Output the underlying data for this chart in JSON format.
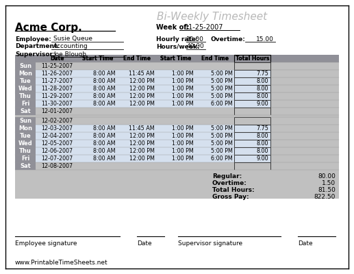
{
  "title": "Bi-Weekly Timesheet",
  "company": "Acme Corp.",
  "week_of_label": "Week of:",
  "week_of_value": "11-25-2007",
  "employee_label": "Employee:",
  "employee_value": "Susie Queue",
  "department_label": "Department:",
  "department_value": "Accounting",
  "supervisor_label": "Supervisor:",
  "supervisor_value": "Joe Blough",
  "hourly_rate_label": "Hourly rate:",
  "hourly_rate_value": "10.00",
  "overtime_label": "Overtime:",
  "overtime_value": "15.00",
  "hours_week_label": "Hours/week:",
  "hours_week_value": "40.00",
  "col_headers": [
    "Date",
    "Start Time",
    "End Time",
    "Start Time",
    "End Time",
    "Total Hours"
  ],
  "week1_rows": [
    {
      "day": "Sun",
      "date": "11-25-2007",
      "s1": "",
      "e1": "",
      "s2": "",
      "e2": "",
      "hours": ""
    },
    {
      "day": "Mon",
      "date": "11-26-2007",
      "s1": "8:00 AM",
      "e1": "11:45 AM",
      "s2": "1:00 PM",
      "e2": "5:00 PM",
      "hours": "7.75"
    },
    {
      "day": "Tue",
      "date": "11-27-2007",
      "s1": "8:00 AM",
      "e1": "12:00 PM",
      "s2": "1:00 PM",
      "e2": "5:00 PM",
      "hours": "8.00"
    },
    {
      "day": "Wed",
      "date": "11-28-2007",
      "s1": "8:00 AM",
      "e1": "12:00 PM",
      "s2": "1:00 PM",
      "e2": "5:00 PM",
      "hours": "8.00"
    },
    {
      "day": "Thu",
      "date": "11-29-2007",
      "s1": "8:00 AM",
      "e1": "12:00 PM",
      "s2": "1:00 PM",
      "e2": "5:00 PM",
      "hours": "8.00"
    },
    {
      "day": "Fri",
      "date": "11-30-2007",
      "s1": "8:00 AM",
      "e1": "12:00 PM",
      "s2": "1:00 PM",
      "e2": "6:00 PM",
      "hours": "9.00"
    },
    {
      "day": "Sat",
      "date": "12-01-2007",
      "s1": "",
      "e1": "",
      "s2": "",
      "e2": "",
      "hours": ""
    }
  ],
  "week2_rows": [
    {
      "day": "Sun",
      "date": "12-02-2007",
      "s1": "",
      "e1": "",
      "s2": "",
      "e2": "",
      "hours": ""
    },
    {
      "day": "Mon",
      "date": "12-03-2007",
      "s1": "8:00 AM",
      "e1": "11:45 AM",
      "s2": "1:00 PM",
      "e2": "5:00 PM",
      "hours": "7.75"
    },
    {
      "day": "Tue",
      "date": "12-04-2007",
      "s1": "8:00 AM",
      "e1": "12:00 PM",
      "s2": "1:00 PM",
      "e2": "5:00 PM",
      "hours": "8.00"
    },
    {
      "day": "Wed",
      "date": "12-05-2007",
      "s1": "8:00 AM",
      "e1": "12:00 PM",
      "s2": "1:00 PM",
      "e2": "5:00 PM",
      "hours": "8.00"
    },
    {
      "day": "Thu",
      "date": "12-06-2007",
      "s1": "8:00 AM",
      "e1": "12:00 PM",
      "s2": "1:00 PM",
      "e2": "5:00 PM",
      "hours": "8.00"
    },
    {
      "day": "Fri",
      "date": "12-07-2007",
      "s1": "8:00 AM",
      "e1": "12:00 PM",
      "s2": "1:00 PM",
      "e2": "6:00 PM",
      "hours": "9.00"
    },
    {
      "day": "Sat",
      "date": "12-08-2007",
      "s1": "",
      "e1": "",
      "s2": "",
      "e2": "",
      "hours": ""
    }
  ],
  "summary": {
    "regular_label": "Regular:",
    "regular_value": "80.00",
    "overtime_label": "Overtime:",
    "overtime_value": "1.50",
    "total_hours_label": "Total Hours:",
    "total_hours_value": "81.50",
    "gross_pay_label": "Gross Pay:",
    "gross_pay_value": "822.50"
  },
  "sig1": "Employee signature",
  "sig1_date": "Date",
  "sig2": "Supervisor signature",
  "sig2_date": "Date",
  "website": "www.PrintableTimeSheets.net",
  "bg_outer": "#ffffff",
  "bg_table": "#c0c0c0",
  "bg_header_row": "#909098",
  "bg_day_col": "#909098",
  "bg_data_row": "#d5e0ee",
  "bg_weekend_row": "#c0c0c0",
  "color_title": "#b8b8b8",
  "color_text": "#000000"
}
